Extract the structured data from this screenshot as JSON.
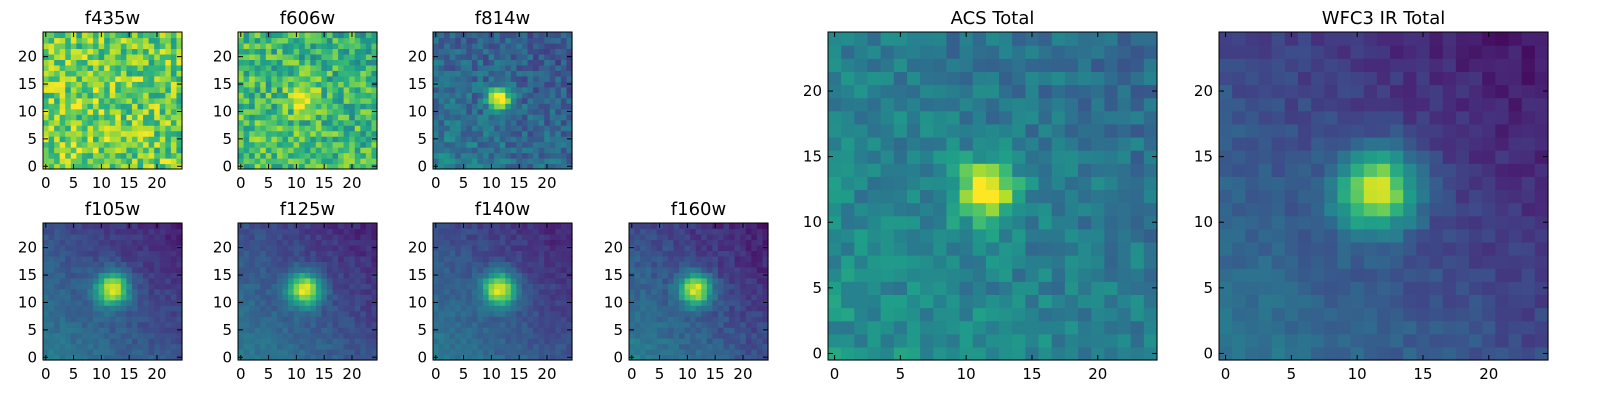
{
  "chart_data": [
    {
      "type": "heatmap",
      "title": "f435w",
      "colormap": "viridis",
      "xlim": [
        0,
        24
      ],
      "ylim": [
        0,
        24
      ],
      "xticks": [
        0,
        5,
        10,
        15,
        20
      ],
      "yticks": [
        0,
        5,
        10,
        15,
        20
      ],
      "source_peak": 0.05,
      "source_center": [
        11.5,
        12
      ],
      "source_sigma": 2.0,
      "background": 0.78,
      "noise": 0.22,
      "gradient": 0.02
    },
    {
      "type": "heatmap",
      "title": "f606w",
      "colormap": "viridis",
      "xlim": [
        0,
        24
      ],
      "ylim": [
        0,
        24
      ],
      "xticks": [
        0,
        5,
        10,
        15,
        20
      ],
      "yticks": [
        0,
        5,
        10,
        15,
        20
      ],
      "source_peak": 0.35,
      "source_center": [
        11.5,
        12.5
      ],
      "source_sigma": 1.8,
      "background": 0.68,
      "noise": 0.2,
      "gradient": 0.04
    },
    {
      "type": "heatmap",
      "title": "f814w",
      "colormap": "viridis",
      "xlim": [
        0,
        24
      ],
      "ylim": [
        0,
        24
      ],
      "xticks": [
        0,
        5,
        10,
        15,
        20
      ],
      "yticks": [
        0,
        5,
        10,
        15,
        20
      ],
      "source_peak": 0.75,
      "source_center": [
        11.5,
        12.5
      ],
      "source_sigma": 1.4,
      "background": 0.36,
      "noise": 0.12,
      "gradient": 0.08
    },
    {
      "type": "heatmap",
      "title": "f105w",
      "colormap": "viridis",
      "xlim": [
        0,
        24
      ],
      "ylim": [
        0,
        24
      ],
      "xticks": [
        0,
        5,
        10,
        15,
        20
      ],
      "yticks": [
        0,
        5,
        10,
        15,
        20
      ],
      "source_peak": 0.72,
      "source_center": [
        12,
        12.5
      ],
      "source_sigma": 2.1,
      "background": 0.3,
      "noise": 0.05,
      "gradient": 0.16
    },
    {
      "type": "heatmap",
      "title": "f125w",
      "colormap": "viridis",
      "xlim": [
        0,
        24
      ],
      "ylim": [
        0,
        24
      ],
      "xticks": [
        0,
        5,
        10,
        15,
        20
      ],
      "yticks": [
        0,
        5,
        10,
        15,
        20
      ],
      "source_peak": 0.72,
      "source_center": [
        11.5,
        12.5
      ],
      "source_sigma": 2.1,
      "background": 0.3,
      "noise": 0.05,
      "gradient": 0.16
    },
    {
      "type": "heatmap",
      "title": "f140w",
      "colormap": "viridis",
      "xlim": [
        0,
        24
      ],
      "ylim": [
        0,
        24
      ],
      "xticks": [
        0,
        5,
        10,
        15,
        20
      ],
      "yticks": [
        0,
        5,
        10,
        15,
        20
      ],
      "source_peak": 0.72,
      "source_center": [
        11.5,
        12.5
      ],
      "source_sigma": 2.1,
      "background": 0.3,
      "noise": 0.05,
      "gradient": 0.16
    },
    {
      "type": "heatmap",
      "title": "f160w",
      "colormap": "viridis",
      "xlim": [
        0,
        24
      ],
      "ylim": [
        0,
        24
      ],
      "xticks": [
        0,
        5,
        10,
        15,
        20
      ],
      "yticks": [
        0,
        5,
        10,
        15,
        20
      ],
      "source_peak": 0.72,
      "source_center": [
        11.5,
        12.5
      ],
      "source_sigma": 2.0,
      "background": 0.3,
      "noise": 0.06,
      "gradient": 0.18
    },
    {
      "type": "heatmap",
      "title": "ACS Total",
      "colormap": "viridis",
      "xlim": [
        0,
        24
      ],
      "ylim": [
        0,
        24
      ],
      "xticks": [
        0,
        5,
        10,
        15,
        20
      ],
      "yticks": [
        0,
        5,
        10,
        15,
        20
      ],
      "source_peak": 0.6,
      "source_center": [
        11.5,
        12.5
      ],
      "source_sigma": 1.6,
      "background": 0.45,
      "noise": 0.1,
      "gradient": 0.08
    },
    {
      "type": "heatmap",
      "title": "WFC3 IR Total",
      "colormap": "viridis",
      "xlim": [
        0,
        24
      ],
      "ylim": [
        0,
        24
      ],
      "xticks": [
        0,
        5,
        10,
        15,
        20
      ],
      "yticks": [
        0,
        5,
        10,
        15,
        20
      ],
      "source_peak": 0.72,
      "source_center": [
        11.5,
        12.5
      ],
      "source_sigma": 2.1,
      "background": 0.28,
      "noise": 0.05,
      "gradient": 0.18
    }
  ]
}
